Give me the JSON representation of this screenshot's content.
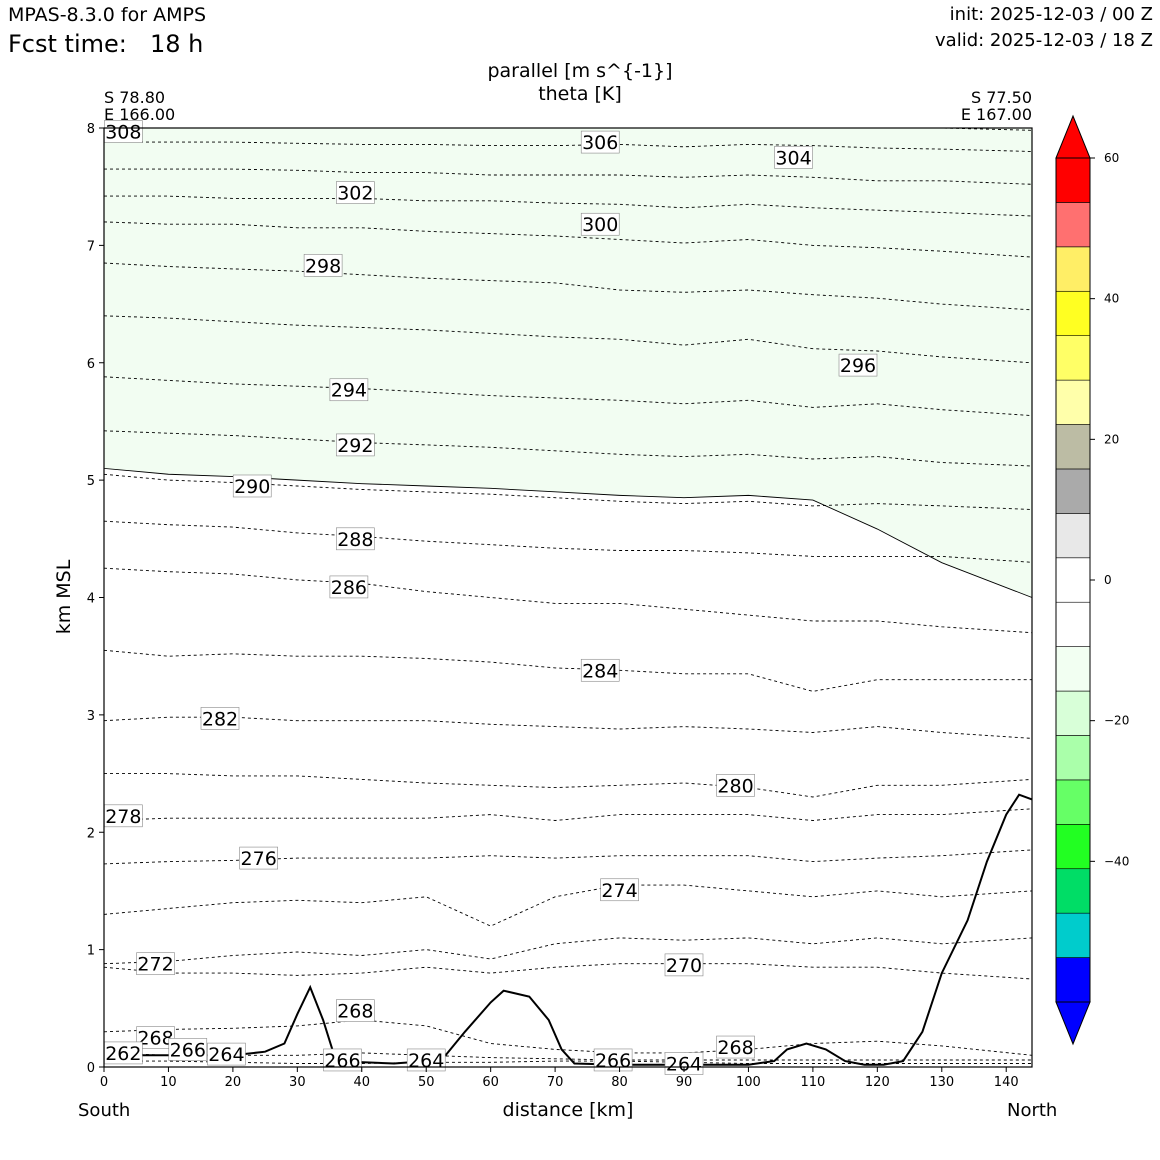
{
  "header": {
    "model": "MPAS-8.3.0 for AMPS",
    "fcst_label": "Fcst time:",
    "fcst_value": "18 h",
    "init": "init: 2025-12-03 / 00 Z",
    "valid": "valid: 2025-12-03 / 18 Z"
  },
  "chart_data": {
    "type": "contour",
    "title": "parallel [m s^{-1}]",
    "subtitle": "theta [K]",
    "xlabel": "distance [km]",
    "ylabel": "km MSL",
    "xlim": [
      0,
      144
    ],
    "ylim": [
      0,
      8
    ],
    "xticks": [
      0,
      10,
      20,
      30,
      40,
      50,
      60,
      70,
      80,
      90,
      100,
      110,
      120,
      130,
      140
    ],
    "yticks": [
      0,
      1,
      2,
      3,
      4,
      5,
      6,
      7,
      8
    ],
    "left_endpoint": {
      "lat": "S 78.80",
      "lon": "E 166.00",
      "direction": "South"
    },
    "right_endpoint": {
      "lat": "S 77.50",
      "lon": "E 167.00",
      "direction": "North"
    },
    "colorbar": {
      "levels": [
        -60,
        -50,
        -45,
        -40,
        -35,
        -30,
        -25,
        -20,
        -15,
        -10,
        -5,
        0,
        5,
        10,
        15,
        20,
        25,
        30,
        35,
        40,
        45,
        50,
        55,
        60
      ],
      "colors": [
        "#0000ff",
        "#00cccc",
        "#00dd66",
        "#22ff22",
        "#66ff66",
        "#aaffaa",
        "#d8ffd8",
        "#f2fff2",
        "#ffffff",
        "#ffffff",
        "#e8e8e8",
        "#aaaaaa",
        "#bcbca4",
        "#ffffaa",
        "#ffff66",
        "#ffff22",
        "#ffee66",
        "#ff7070",
        "#ff0000"
      ],
      "under_color": "#0000ff",
      "over_color": "#ff0000",
      "tick_labels": [
        "60",
        "40",
        "20",
        "0",
        "−20",
        "−40"
      ],
      "tick_values": [
        60,
        40,
        20,
        0,
        -20,
        -40
      ]
    },
    "shaded_region": {
      "value_range": [
        -10,
        -5
      ],
      "color": "#f2fdf2",
      "description_values_km": "parallel wind between -10 and -5 m/s above ~5 km"
    },
    "theta_contours": [
      {
        "theta": 264,
        "y_km": [
          0.05,
          0.05,
          0.04,
          0.03,
          0.03,
          0.04,
          0.04,
          0.05,
          0.05,
          0.04,
          0.03,
          0.03,
          0.03,
          0.03,
          0.03
        ]
      },
      {
        "theta": 266,
        "y_km": [
          0.12,
          0.1,
          0.1,
          0.1,
          0.12,
          0.1,
          0.08,
          0.07,
          0.06,
          0.06,
          0.06,
          0.06,
          0.06,
          0.06,
          0.06
        ]
      },
      {
        "theta": 268,
        "y_km": [
          0.3,
          0.32,
          0.33,
          0.35,
          0.4,
          0.35,
          0.2,
          0.15,
          0.12,
          0.12,
          0.15,
          0.2,
          0.22,
          0.18,
          0.1
        ]
      },
      {
        "theta": 270,
        "y_km": [
          0.85,
          0.8,
          0.8,
          0.78,
          0.8,
          0.85,
          0.8,
          0.85,
          0.88,
          0.88,
          0.88,
          0.85,
          0.85,
          0.8,
          0.75
        ]
      },
      {
        "theta": 272,
        "y_km": [
          0.88,
          0.9,
          0.95,
          0.98,
          0.95,
          1.0,
          0.92,
          1.05,
          1.1,
          1.08,
          1.1,
          1.05,
          1.1,
          1.05,
          1.1
        ]
      },
      {
        "theta": 274,
        "y_km": [
          1.3,
          1.35,
          1.4,
          1.42,
          1.4,
          1.45,
          1.2,
          1.45,
          1.55,
          1.55,
          1.5,
          1.45,
          1.5,
          1.45,
          1.5
        ]
      },
      {
        "theta": 276,
        "y_km": [
          1.73,
          1.75,
          1.76,
          1.78,
          1.78,
          1.78,
          1.8,
          1.78,
          1.8,
          1.8,
          1.8,
          1.75,
          1.78,
          1.8,
          1.85
        ]
      },
      {
        "theta": 278,
        "y_km": [
          2.1,
          2.12,
          2.12,
          2.12,
          2.12,
          2.12,
          2.15,
          2.1,
          2.15,
          2.15,
          2.15,
          2.1,
          2.15,
          2.15,
          2.2
        ]
      },
      {
        "theta": 280,
        "y_km": [
          2.5,
          2.5,
          2.48,
          2.48,
          2.45,
          2.42,
          2.4,
          2.38,
          2.4,
          2.42,
          2.38,
          2.3,
          2.4,
          2.4,
          2.45
        ]
      },
      {
        "theta": 282,
        "y_km": [
          2.95,
          2.98,
          2.98,
          2.95,
          2.95,
          2.95,
          2.92,
          2.9,
          2.88,
          2.9,
          2.88,
          2.85,
          2.9,
          2.85,
          2.8
        ]
      },
      {
        "theta": 284,
        "y_km": [
          3.55,
          3.5,
          3.52,
          3.5,
          3.5,
          3.48,
          3.45,
          3.4,
          3.38,
          3.35,
          3.35,
          3.2,
          3.3,
          3.3,
          3.3
        ]
      },
      {
        "theta": 286,
        "y_km": [
          4.25,
          4.22,
          4.2,
          4.15,
          4.12,
          4.05,
          4.0,
          3.95,
          3.95,
          3.9,
          3.85,
          3.8,
          3.8,
          3.75,
          3.7
        ]
      },
      {
        "theta": 288,
        "y_km": [
          4.65,
          4.62,
          4.6,
          4.55,
          4.52,
          4.48,
          4.45,
          4.42,
          4.4,
          4.4,
          4.38,
          4.35,
          4.35,
          4.35,
          4.3
        ]
      },
      {
        "theta": 290,
        "y_km": [
          5.05,
          5.0,
          4.98,
          4.95,
          4.92,
          4.9,
          4.88,
          4.85,
          4.82,
          4.8,
          4.82,
          4.78,
          4.8,
          4.78,
          4.75
        ]
      },
      {
        "theta": 292,
        "y_km": [
          5.42,
          5.4,
          5.38,
          5.35,
          5.32,
          5.3,
          5.28,
          5.25,
          5.22,
          5.2,
          5.22,
          5.18,
          5.2,
          5.15,
          5.12
        ]
      },
      {
        "theta": 294,
        "y_km": [
          5.88,
          5.85,
          5.82,
          5.8,
          5.78,
          5.75,
          5.72,
          5.7,
          5.68,
          5.65,
          5.68,
          5.62,
          5.65,
          5.6,
          5.55
        ]
      },
      {
        "theta": 296,
        "y_km": [
          6.4,
          6.38,
          6.35,
          6.32,
          6.3,
          6.28,
          6.25,
          6.22,
          6.2,
          6.15,
          6.2,
          6.12,
          6.1,
          6.05,
          6.0
        ]
      },
      {
        "theta": 298,
        "y_km": [
          6.85,
          6.82,
          6.8,
          6.78,
          6.75,
          6.72,
          6.7,
          6.68,
          6.62,
          6.6,
          6.62,
          6.58,
          6.55,
          6.5,
          6.45
        ]
      },
      {
        "theta": 300,
        "y_km": [
          7.2,
          7.18,
          7.18,
          7.15,
          7.15,
          7.12,
          7.1,
          7.08,
          7.05,
          7.02,
          7.05,
          7.0,
          6.98,
          6.95,
          6.9
        ]
      },
      {
        "theta": 302,
        "y_km": [
          7.42,
          7.42,
          7.4,
          7.4,
          7.4,
          7.38,
          7.38,
          7.36,
          7.35,
          7.32,
          7.35,
          7.32,
          7.3,
          7.28,
          7.25
        ]
      },
      {
        "theta": 304,
        "y_km": [
          7.65,
          7.65,
          7.65,
          7.64,
          7.62,
          7.62,
          7.6,
          7.6,
          7.6,
          7.58,
          7.6,
          7.58,
          7.55,
          7.55,
          7.52
        ]
      },
      {
        "theta": 306,
        "y_km": [
          7.88,
          7.88,
          7.88,
          7.87,
          7.86,
          7.86,
          7.85,
          7.85,
          7.86,
          7.84,
          7.86,
          7.85,
          7.83,
          7.82,
          7.8
        ]
      },
      {
        "theta": 308,
        "y_km": [
          8.0,
          8.0,
          8.0,
          8.0,
          8.0,
          8.0,
          8.0,
          8.0,
          8.0,
          8.0,
          8.0,
          8.0,
          8.0,
          8.0,
          7.98
        ]
      }
    ],
    "contour_x_km": [
      0,
      10,
      20,
      30,
      40,
      50,
      60,
      70,
      80,
      90,
      100,
      110,
      120,
      130,
      144
    ],
    "contour_labels": [
      {
        "text": "308",
        "x": 3,
        "y": 7.97
      },
      {
        "text": "306",
        "x": 77,
        "y": 7.88
      },
      {
        "text": "304",
        "x": 107,
        "y": 7.75
      },
      {
        "text": "302",
        "x": 39,
        "y": 7.45
      },
      {
        "text": "300",
        "x": 77,
        "y": 7.18
      },
      {
        "text": "298",
        "x": 34,
        "y": 6.83
      },
      {
        "text": "296",
        "x": 117,
        "y": 5.98
      },
      {
        "text": "294",
        "x": 38,
        "y": 5.77
      },
      {
        "text": "292",
        "x": 39,
        "y": 5.3
      },
      {
        "text": "290",
        "x": 23,
        "y": 4.95
      },
      {
        "text": "288",
        "x": 39,
        "y": 4.5
      },
      {
        "text": "286",
        "x": 38,
        "y": 4.09
      },
      {
        "text": "284",
        "x": 77,
        "y": 3.38
      },
      {
        "text": "282",
        "x": 18,
        "y": 2.97
      },
      {
        "text": "280",
        "x": 98,
        "y": 2.4
      },
      {
        "text": "278",
        "x": 3,
        "y": 2.14
      },
      {
        "text": "276",
        "x": 24,
        "y": 1.78
      },
      {
        "text": "274",
        "x": 80,
        "y": 1.51
      },
      {
        "text": "272",
        "x": 8,
        "y": 0.88
      },
      {
        "text": "270",
        "x": 90,
        "y": 0.87
      },
      {
        "text": "268",
        "x": 39,
        "y": 0.48
      },
      {
        "text": "268",
        "x": 8,
        "y": 0.25
      },
      {
        "text": "268",
        "x": 98,
        "y": 0.17
      },
      {
        "text": "266",
        "x": 13,
        "y": 0.15
      },
      {
        "text": "266",
        "x": 37,
        "y": 0.06
      },
      {
        "text": "266",
        "x": 79,
        "y": 0.06
      },
      {
        "text": "264",
        "x": 19,
        "y": 0.11
      },
      {
        "text": "264",
        "x": 50,
        "y": 0.06
      },
      {
        "text": "264",
        "x": 90,
        "y": 0.03
      },
      {
        "text": "262",
        "x": 3,
        "y": 0.12
      }
    ],
    "terrain_km": [
      [
        0,
        0.1
      ],
      [
        10,
        0.1
      ],
      [
        20,
        0.1
      ],
      [
        25,
        0.13
      ],
      [
        28,
        0.2
      ],
      [
        30,
        0.45
      ],
      [
        32,
        0.68
      ],
      [
        34,
        0.4
      ],
      [
        36,
        0.05
      ],
      [
        45,
        0.03
      ],
      [
        50,
        0.05
      ],
      [
        53,
        0.1
      ],
      [
        56,
        0.3
      ],
      [
        60,
        0.55
      ],
      [
        62,
        0.65
      ],
      [
        66,
        0.6
      ],
      [
        69,
        0.4
      ],
      [
        71,
        0.15
      ],
      [
        73,
        0.03
      ],
      [
        80,
        0.02
      ],
      [
        90,
        0.02
      ],
      [
        100,
        0.02
      ],
      [
        104,
        0.05
      ],
      [
        106,
        0.15
      ],
      [
        109,
        0.2
      ],
      [
        112,
        0.15
      ],
      [
        115,
        0.05
      ],
      [
        118,
        0.02
      ],
      [
        121,
        0.02
      ],
      [
        124,
        0.05
      ],
      [
        127,
        0.3
      ],
      [
        130,
        0.8
      ],
      [
        134,
        1.25
      ],
      [
        137,
        1.75
      ],
      [
        140,
        2.15
      ],
      [
        142,
        2.32
      ],
      [
        144,
        2.28
      ]
    ]
  }
}
